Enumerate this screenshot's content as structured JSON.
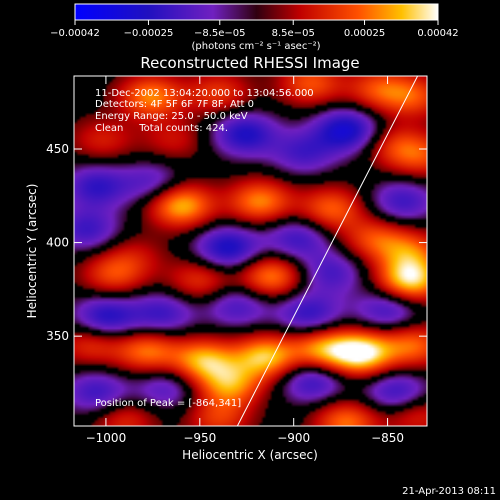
{
  "chart_data": {
    "type": "heatmap",
    "title": "Reconstructed RHESSI Image",
    "xlabel": "Heliocentric X (arcsec)",
    "ylabel": "Heliocentric Y (arcsec)",
    "xlim": [
      -1017,
      -829
    ],
    "ylim": [
      302,
      489
    ],
    "x_ticks": [
      -1000,
      -950,
      -900,
      -850
    ],
    "y_ticks": [
      350,
      400,
      450
    ],
    "x_tick_labels": [
      "−1000",
      "−950",
      "−900",
      "−850"
    ],
    "y_tick_labels": [
      "350",
      "400",
      "450"
    ],
    "colorbar": {
      "range": [
        -0.00042,
        0.00042
      ],
      "ticks": [
        -0.00042,
        -0.00025,
        -8.5e-05,
        8.5e-05,
        0.00025,
        0.00042
      ],
      "tick_labels": [
        "−0.00042",
        "−0.00025",
        "−8.5e−05",
        "8.5e−05",
        "0.00025",
        "0.00042"
      ],
      "units_label": "(photons cm⁻² s⁻¹ asec⁻²)"
    },
    "annotations": [
      "11-Dec-2002 13:04:20.000 to 13:04:56.000",
      "Detectors: 4F 5F 6F 7F 8F, Att 0",
      "Energy Range: 25.0 - 50.0 keV",
      "Clean     Total counts: 424.",
      "Position of Peak = [-864,341]"
    ],
    "limb_line": {
      "x": [
        -930,
        -834
      ],
      "y": [
        302,
        489
      ]
    },
    "blobs": [
      {
        "x": -976,
        "y": 478,
        "amp": 0.00028
      },
      {
        "x": -940,
        "y": 480,
        "amp": 0.00018
      },
      {
        "x": -891,
        "y": 485,
        "amp": 0.00022
      },
      {
        "x": -855,
        "y": 482,
        "amp": 0.0002
      },
      {
        "x": -836,
        "y": 478,
        "amp": 0.0002
      },
      {
        "x": -1002,
        "y": 455,
        "amp": 0.00014
      },
      {
        "x": -964,
        "y": 455,
        "amp": 0.00012
      },
      {
        "x": -926,
        "y": 458,
        "amp": -0.00026
      },
      {
        "x": -895,
        "y": 448,
        "amp": -0.00018
      },
      {
        "x": -872,
        "y": 460,
        "amp": -0.0003
      },
      {
        "x": -846,
        "y": 452,
        "amp": 0.00016
      },
      {
        "x": -832,
        "y": 446,
        "amp": 0.00018
      },
      {
        "x": -1005,
        "y": 430,
        "amp": -0.00022
      },
      {
        "x": -975,
        "y": 432,
        "amp": -0.00016
      },
      {
        "x": -960,
        "y": 420,
        "amp": 0.00034
      },
      {
        "x": -918,
        "y": 422,
        "amp": 0.00028
      },
      {
        "x": -880,
        "y": 418,
        "amp": 0.00024
      },
      {
        "x": -842,
        "y": 422,
        "amp": -0.0002
      },
      {
        "x": -1010,
        "y": 407,
        "amp": -0.0002
      },
      {
        "x": -985,
        "y": 393,
        "amp": 0.0001
      },
      {
        "x": -935,
        "y": 397,
        "amp": -0.00028
      },
      {
        "x": -898,
        "y": 402,
        "amp": -0.0002
      },
      {
        "x": -857,
        "y": 402,
        "amp": 0.0002
      },
      {
        "x": -838,
        "y": 395,
        "amp": 0.00022
      },
      {
        "x": -996,
        "y": 383,
        "amp": 0.0002
      },
      {
        "x": -950,
        "y": 380,
        "amp": 0.00018
      },
      {
        "x": -912,
        "y": 382,
        "amp": 0.00028
      },
      {
        "x": -880,
        "y": 384,
        "amp": -0.00018
      },
      {
        "x": -838,
        "y": 380,
        "amp": 0.00038
      },
      {
        "x": -1000,
        "y": 360,
        "amp": -0.00026
      },
      {
        "x": -970,
        "y": 362,
        "amp": -0.0002
      },
      {
        "x": -930,
        "y": 366,
        "amp": -0.00018
      },
      {
        "x": -892,
        "y": 362,
        "amp": -0.00022
      },
      {
        "x": -850,
        "y": 364,
        "amp": -0.0002
      },
      {
        "x": -1008,
        "y": 346,
        "amp": 0.00018
      },
      {
        "x": -978,
        "y": 342,
        "amp": 0.00026
      },
      {
        "x": -948,
        "y": 337,
        "amp": 0.00032
      },
      {
        "x": -915,
        "y": 339,
        "amp": 0.00034
      },
      {
        "x": -885,
        "y": 343,
        "amp": 0.00028
      },
      {
        "x": -864,
        "y": 341,
        "amp": 0.00042
      },
      {
        "x": -836,
        "y": 345,
        "amp": 0.00024
      },
      {
        "x": -1005,
        "y": 320,
        "amp": -0.0002
      },
      {
        "x": -968,
        "y": 322,
        "amp": -0.00016
      },
      {
        "x": -934,
        "y": 324,
        "amp": 0.00028
      },
      {
        "x": -890,
        "y": 326,
        "amp": -0.00022
      },
      {
        "x": -845,
        "y": 320,
        "amp": -0.00022
      },
      {
        "x": -990,
        "y": 305,
        "amp": 0.00016
      },
      {
        "x": -940,
        "y": 306,
        "amp": 0.00018
      },
      {
        "x": -872,
        "y": 304,
        "amp": 0.00026
      },
      {
        "x": -835,
        "y": 308,
        "amp": 0.00016
      }
    ]
  },
  "footer": {
    "timestamp": "21-Apr-2013 08:11"
  }
}
